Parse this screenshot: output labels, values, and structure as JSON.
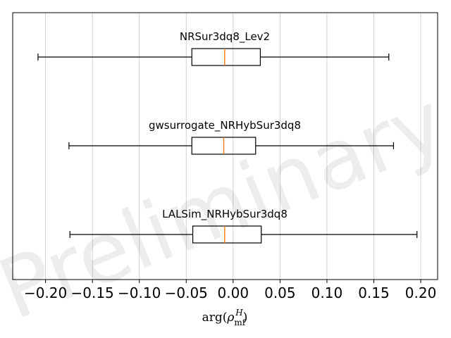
{
  "watermark": "Preliminary",
  "colors": {
    "box": "#000000",
    "median": "#ff7f0e",
    "grid": "#c8c8c8",
    "axes": "#000000"
  },
  "chart_data": {
    "type": "boxplot",
    "orientation": "horizontal",
    "xlabel": "arg(ρ_mf^H)",
    "xlim": [
      -0.235,
      0.218
    ],
    "x_ticks": [
      -0.2,
      -0.15,
      -0.1,
      -0.05,
      0.0,
      0.05,
      0.1,
      0.15,
      0.2
    ],
    "x_tick_labels": [
      "−0.20",
      "−0.15",
      "−0.10",
      "−0.05",
      "0.00",
      "0.05",
      "0.10",
      "0.15",
      "0.20"
    ],
    "grid": "vertical",
    "series": [
      {
        "name": "NRSur3dq8_Lev2",
        "whisker_low": -0.208,
        "q1": -0.044,
        "median": -0.009,
        "q3": 0.029,
        "whisker_high": 0.166
      },
      {
        "name": "gwsurrogate_NRHybSur3dq8",
        "whisker_low": -0.175,
        "q1": -0.044,
        "median": -0.01,
        "q3": 0.024,
        "whisker_high": 0.171
      },
      {
        "name": "LALSim_NRHybSur3dq8",
        "whisker_low": -0.174,
        "q1": -0.043,
        "median": -0.009,
        "q3": 0.03,
        "whisker_high": 0.196
      }
    ]
  }
}
